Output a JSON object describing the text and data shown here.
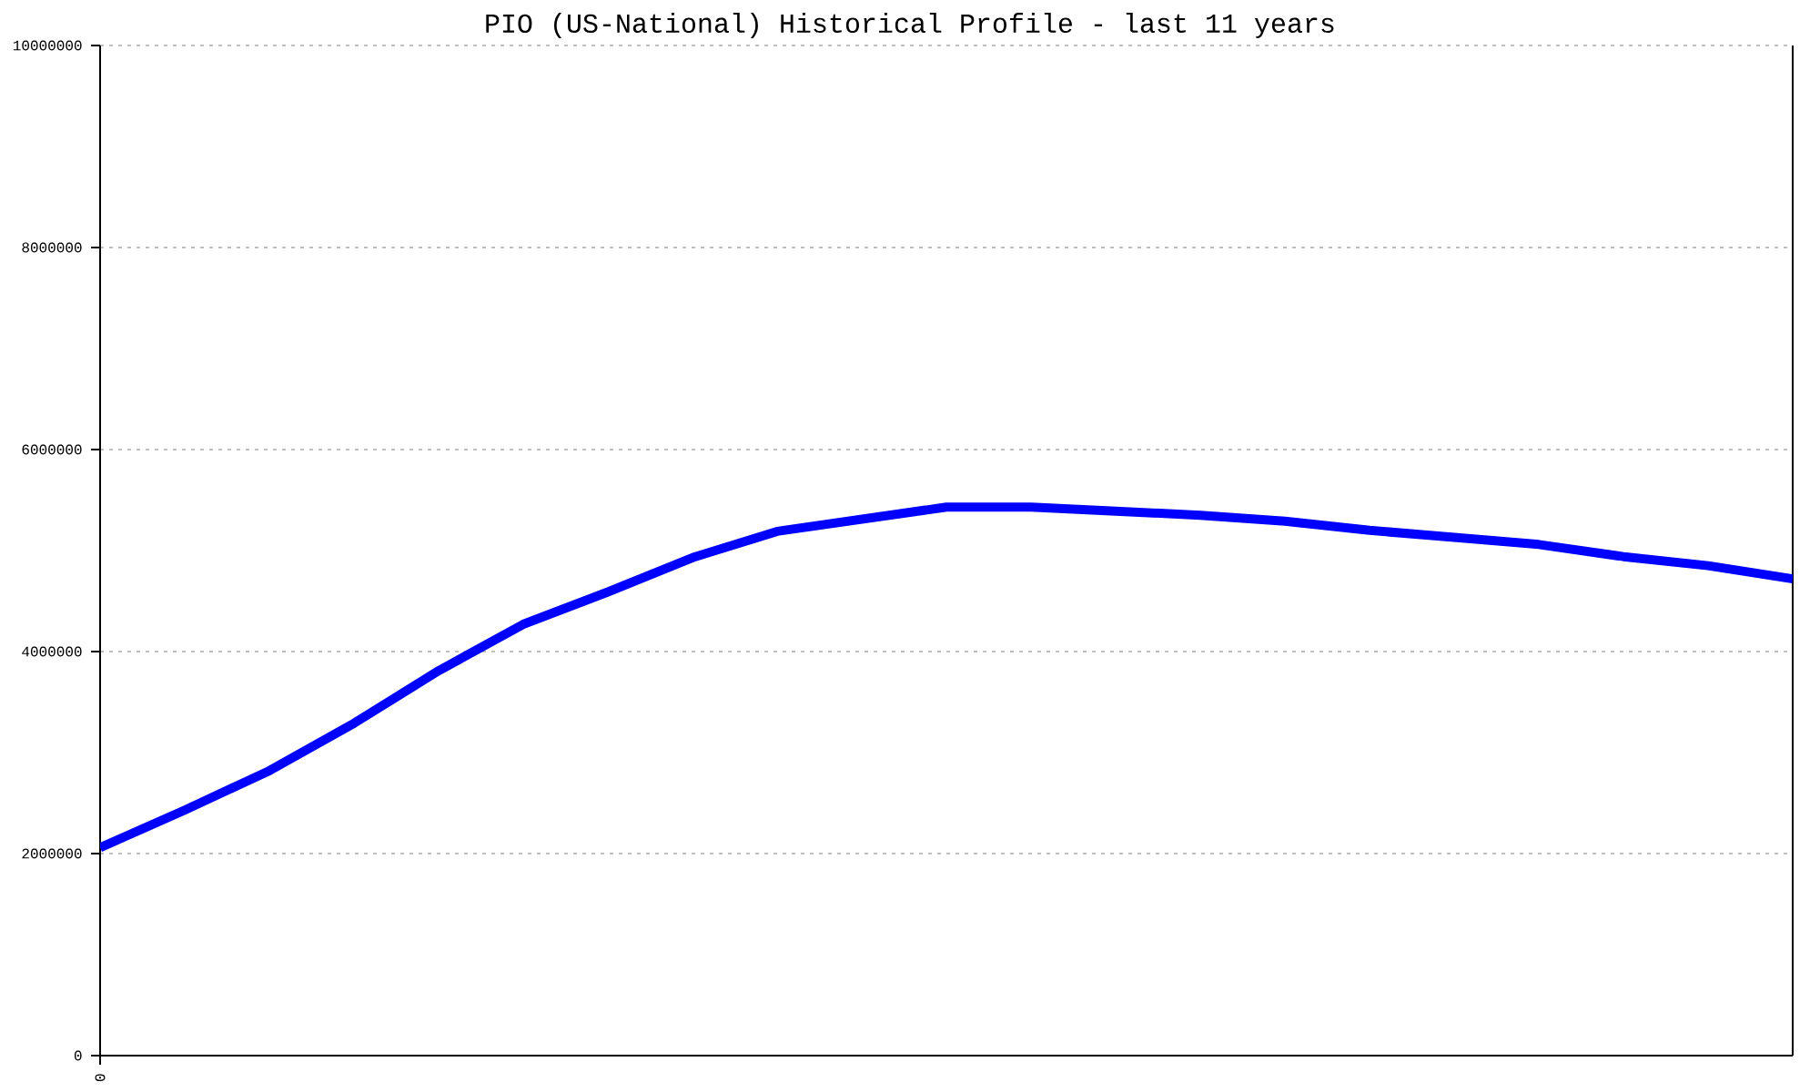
{
  "chart_data": {
    "type": "line",
    "title": "PIO (US-National) Historical Profile - last 11 years",
    "categories": [
      "0",
      null,
      null,
      null,
      null,
      null,
      null,
      null,
      null,
      null,
      null,
      null,
      null,
      null,
      null,
      null,
      null,
      null,
      null,
      null,
      null
    ],
    "series": [
      {
        "color": "#0000ff",
        "values": [
          2060000,
          2430000,
          2820000,
          3290000,
          3810000,
          4270000,
          4590000,
          4930000,
          5190000,
          5310000,
          5430000,
          5430000,
          5390000,
          5350000,
          5290000,
          5200000,
          5130000,
          5060000,
          4940000,
          4850000,
          4720000
        ]
      }
    ],
    "ylim": [
      0,
      10000000
    ],
    "yticks": [
      0,
      2000000,
      4000000,
      6000000,
      8000000,
      10000000
    ],
    "grid": "y",
    "line_style": "solid"
  }
}
